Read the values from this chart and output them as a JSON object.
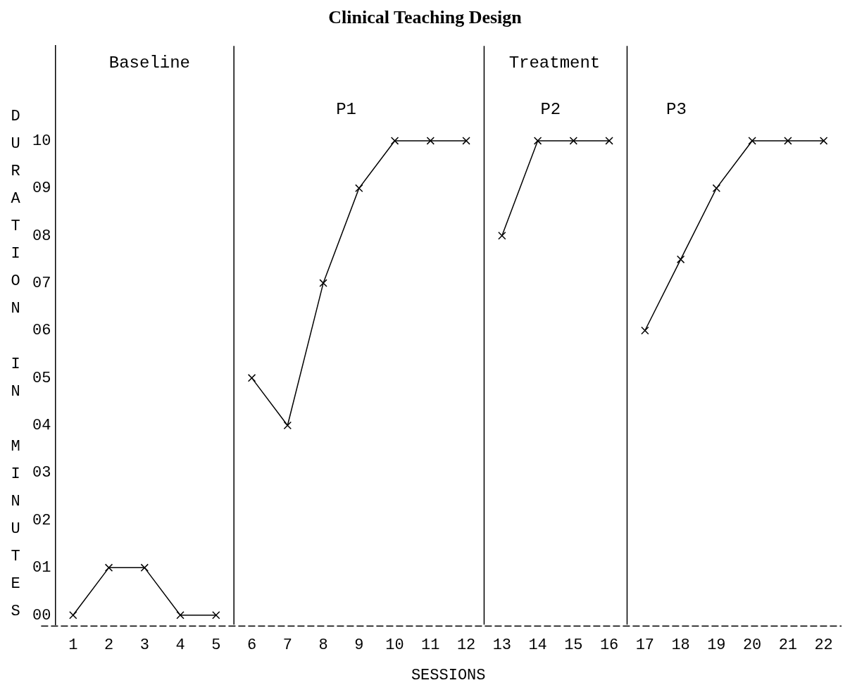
{
  "chart_data": {
    "type": "line",
    "title": "Clinical Teaching Design",
    "xlabel": "SESSIONS",
    "ylabel": "DURATION IN MINUTES",
    "x": [
      1,
      2,
      3,
      4,
      5,
      6,
      7,
      8,
      9,
      10,
      11,
      12,
      13,
      14,
      15,
      16,
      17,
      18,
      19,
      20,
      21,
      22
    ],
    "series": [
      {
        "color": "#000000",
        "values": [
          0,
          1,
          1,
          0,
          0,
          null,
          null,
          null,
          null,
          null,
          null,
          null,
          null,
          null,
          null,
          null,
          null,
          null,
          null,
          null,
          null,
          null
        ]
      },
      {
        "color": "#000000",
        "values": [
          null,
          null,
          null,
          null,
          null,
          5,
          4,
          7,
          9,
          10,
          10,
          10,
          null,
          null,
          null,
          null,
          null,
          null,
          null,
          null,
          null,
          null
        ]
      },
      {
        "color": "#000000",
        "values": [
          null,
          null,
          null,
          null,
          null,
          null,
          null,
          null,
          null,
          null,
          null,
          null,
          8,
          10,
          10,
          10,
          null,
          null,
          null,
          null,
          null,
          null
        ]
      },
      {
        "color": "#000000",
        "values": [
          null,
          null,
          null,
          null,
          null,
          null,
          null,
          null,
          null,
          null,
          null,
          null,
          null,
          null,
          null,
          null,
          6,
          7.5,
          9,
          10,
          10,
          10
        ]
      }
    ],
    "xlim": [
      0.5,
      22.5
    ],
    "xticks": [
      1,
      2,
      3,
      4,
      5,
      6,
      7,
      8,
      9,
      10,
      11,
      12,
      13,
      14,
      15,
      16,
      17,
      18,
      19,
      20,
      21,
      22
    ],
    "ylim": [
      -0.2,
      12
    ],
    "yticks": [
      {
        "value": 0,
        "label": "00"
      },
      {
        "value": 1,
        "label": "01"
      },
      {
        "value": 2,
        "label": "02"
      },
      {
        "value": 3,
        "label": "03"
      },
      {
        "value": 4,
        "label": "04"
      },
      {
        "value": 5,
        "label": "05"
      },
      {
        "value": 6,
        "label": "06"
      },
      {
        "value": 7,
        "label": "07"
      },
      {
        "value": 8,
        "label": "08"
      },
      {
        "value": 9,
        "label": "09"
      },
      10
    ],
    "ref_lines": [
      {
        "axis": "x",
        "value": 5.5,
        "color": "#000000"
      },
      {
        "axis": "x",
        "value": 12.5,
        "color": "#000000"
      },
      {
        "axis": "x",
        "value": 16.5,
        "color": "#000000"
      }
    ],
    "annotations": [
      "Baseline",
      "Treatment",
      "P1",
      "P2",
      "P3"
    ],
    "grid": false,
    "legend": false,
    "marker": "cross",
    "line_style": "solid"
  }
}
